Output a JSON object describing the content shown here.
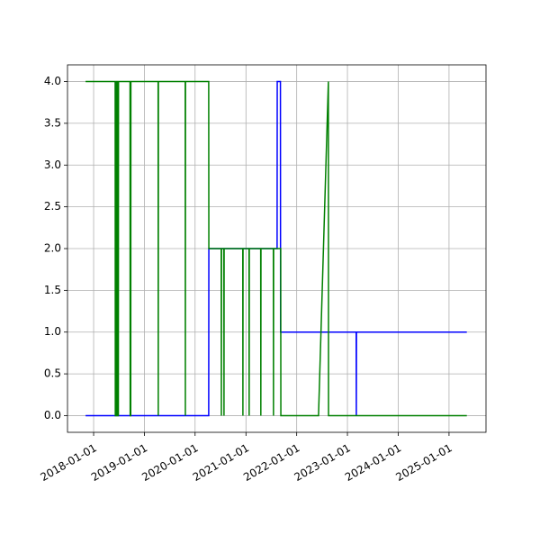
{
  "chart_data": {
    "type": "line",
    "xlim": [
      "2017-06-27",
      "2025-09-24"
    ],
    "xticks": [
      "2018-01-01",
      "2019-01-01",
      "2020-01-01",
      "2021-01-01",
      "2022-01-01",
      "2023-01-01",
      "2024-01-01",
      "2025-01-01"
    ],
    "ylim": [
      -0.2,
      4.2
    ],
    "yticks": [
      {
        "value": 0,
        "label": "0.0"
      },
      {
        "value": 0.5,
        "label": "0.5"
      },
      {
        "value": 1,
        "label": "1.0"
      },
      {
        "value": 1.5,
        "label": "1.5"
      },
      {
        "value": 2,
        "label": "2.0"
      },
      {
        "value": 2.5,
        "label": "2.5"
      },
      {
        "value": 3,
        "label": "3.0"
      },
      {
        "value": 3.5,
        "label": "3.5"
      },
      {
        "value": 4,
        "label": "4.0"
      }
    ],
    "grid": true,
    "series": [
      {
        "color": "#0000ff",
        "x": [
          "2017-11-04",
          "2018-06-10",
          "2018-06-11",
          "2018-06-12",
          "2018-06-18",
          "2018-06-19",
          "2018-06-20",
          "2020-04-08",
          "2020-04-09",
          "2021-08-13",
          "2021-08-14",
          "2021-09-06",
          "2021-09-07",
          "2023-03-05",
          "2023-03-06",
          "2023-03-07",
          "2025-05-09"
        ],
        "values": [
          0,
          0,
          4,
          0,
          0,
          4,
          0,
          0,
          2,
          2,
          4,
          4,
          1,
          1,
          0,
          1,
          1
        ]
      },
      {
        "color": "#008000",
        "x": [
          "2017-11-04",
          "2018-06-05",
          "2018-06-06",
          "2018-06-14",
          "2018-06-15",
          "2018-06-20",
          "2018-06-21",
          "2018-06-28",
          "2018-06-29",
          "2018-09-20",
          "2018-09-21",
          "2018-09-25",
          "2018-09-26",
          "2019-04-10",
          "2019-04-11",
          "2019-04-12",
          "2019-10-22",
          "2019-10-23",
          "2019-10-24",
          "2020-04-08",
          "2020-04-09",
          "2020-07-07",
          "2020-07-08",
          "2020-07-09",
          "2020-07-26",
          "2020-07-27",
          "2020-07-28",
          "2020-12-09",
          "2020-12-10",
          "2020-12-11",
          "2021-01-23",
          "2021-01-24",
          "2021-01-25",
          "2021-04-17",
          "2021-04-18",
          "2021-04-19",
          "2021-07-17",
          "2021-07-18",
          "2021-07-19",
          "2021-09-08",
          "2021-09-09",
          "2022-06-07",
          "2022-08-17",
          "2022-08-18",
          "2025-05-09"
        ],
        "values": [
          4,
          4,
          0,
          0,
          4,
          4,
          0,
          0,
          4,
          4,
          0,
          0,
          4,
          4,
          0,
          4,
          4,
          0,
          4,
          4,
          2,
          2,
          0,
          2,
          2,
          0,
          2,
          2,
          0,
          2,
          2,
          0,
          2,
          2,
          0,
          2,
          2,
          0,
          2,
          2,
          0,
          0,
          4,
          0,
          0
        ]
      }
    ]
  }
}
